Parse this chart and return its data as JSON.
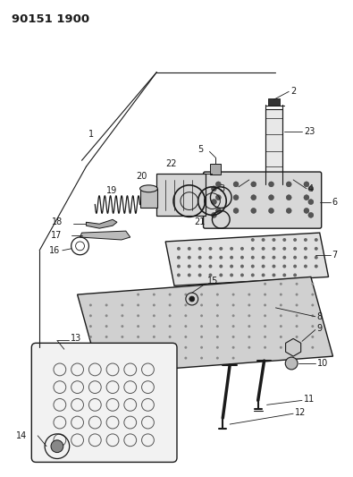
{
  "title": "90151 1900",
  "bg_color": "#ffffff",
  "line_color": "#1a1a1a",
  "fig_width": 3.95,
  "fig_height": 5.33,
  "dpi": 100
}
